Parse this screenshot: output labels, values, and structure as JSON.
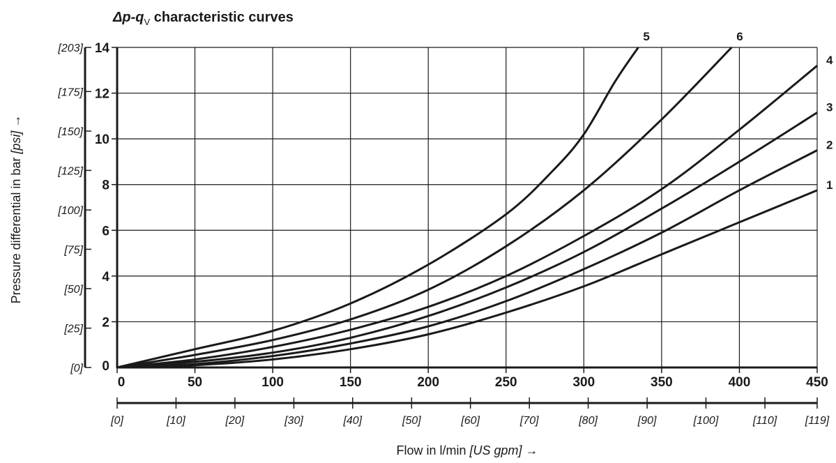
{
  "chart_data": {
    "type": "line",
    "title": {
      "prefix": "Δp-q",
      "subscript": "V",
      "suffix": " characteristic curves"
    },
    "xlabel": {
      "text": "Flow in l/min ",
      "unit_secondary": "[US gpm]",
      "arrow": "→"
    },
    "ylabel": {
      "text": "Pressure differential in bar ",
      "unit_secondary": "[psi]",
      "arrow": "→"
    },
    "xlim": [
      0,
      450
    ],
    "ylim": [
      0,
      14
    ],
    "x_ticks": [
      "0",
      "50",
      "100",
      "150",
      "200",
      "250",
      "300",
      "350",
      "400",
      "450"
    ],
    "y_ticks": [
      "0",
      "2",
      "4",
      "6",
      "8",
      "10",
      "12",
      "14"
    ],
    "x_secondary_ticks": [
      {
        "label": "[0]",
        "value": 0
      },
      {
        "label": "[10]",
        "value": 37.85
      },
      {
        "label": "[20]",
        "value": 75.7
      },
      {
        "label": "[30]",
        "value": 113.6
      },
      {
        "label": "[40]",
        "value": 151.4
      },
      {
        "label": "[50]",
        "value": 189.3
      },
      {
        "label": "[60]",
        "value": 227.1
      },
      {
        "label": "[70]",
        "value": 265.0
      },
      {
        "label": "[80]",
        "value": 302.8
      },
      {
        "label": "[90]",
        "value": 340.7
      },
      {
        "label": "[100]",
        "value": 378.5
      },
      {
        "label": "[110]",
        "value": 416.4
      },
      {
        "label": "[119]",
        "value": 450
      }
    ],
    "y_secondary_ticks": [
      {
        "label": "[0]",
        "value": 0
      },
      {
        "label": "[25]",
        "value": 1.72
      },
      {
        "label": "[50]",
        "value": 3.45
      },
      {
        "label": "[75]",
        "value": 5.17
      },
      {
        "label": "[100]",
        "value": 6.89
      },
      {
        "label": "[125]",
        "value": 8.62
      },
      {
        "label": "[150]",
        "value": 10.34
      },
      {
        "label": "[175]",
        "value": 12.07
      },
      {
        "label": "[203]",
        "value": 14
      }
    ],
    "grid": true,
    "series": [
      {
        "name": "1",
        "x": [
          0,
          50,
          100,
          150,
          200,
          250,
          300,
          350,
          400,
          450
        ],
        "y": [
          0,
          0.1,
          0.35,
          0.8,
          1.45,
          2.4,
          3.55,
          4.95,
          6.35,
          7.75
        ]
      },
      {
        "name": "2",
        "x": [
          0,
          50,
          100,
          150,
          200,
          250,
          300,
          350,
          400,
          450
        ],
        "y": [
          0,
          0.15,
          0.5,
          1.05,
          1.8,
          2.9,
          4.3,
          5.9,
          7.75,
          9.5
        ]
      },
      {
        "name": "3",
        "x": [
          0,
          50,
          100,
          150,
          200,
          250,
          300,
          350,
          400,
          450
        ],
        "y": [
          0,
          0.25,
          0.65,
          1.3,
          2.25,
          3.5,
          5.05,
          6.95,
          9.0,
          11.15
        ]
      },
      {
        "name": "4",
        "x": [
          0,
          50,
          100,
          150,
          200,
          250,
          300,
          350,
          400,
          450
        ],
        "y": [
          0,
          0.35,
          0.9,
          1.65,
          2.65,
          4.0,
          5.75,
          7.8,
          10.4,
          13.2
        ]
      },
      {
        "name": "5",
        "x": [
          0,
          50,
          100,
          150,
          200,
          250,
          280,
          300,
          320,
          335
        ],
        "y": [
          0,
          0.8,
          1.6,
          2.8,
          4.5,
          6.7,
          8.6,
          10.2,
          12.5,
          14.0
        ]
      },
      {
        "name": "6",
        "x": [
          0,
          50,
          100,
          150,
          200,
          250,
          300,
          350,
          395
        ],
        "y": [
          0,
          0.55,
          1.2,
          2.1,
          3.4,
          5.3,
          7.75,
          10.85,
          14.0
        ]
      }
    ],
    "line_color": "#1a1a1a",
    "grid_color": "#1a1a1a"
  }
}
